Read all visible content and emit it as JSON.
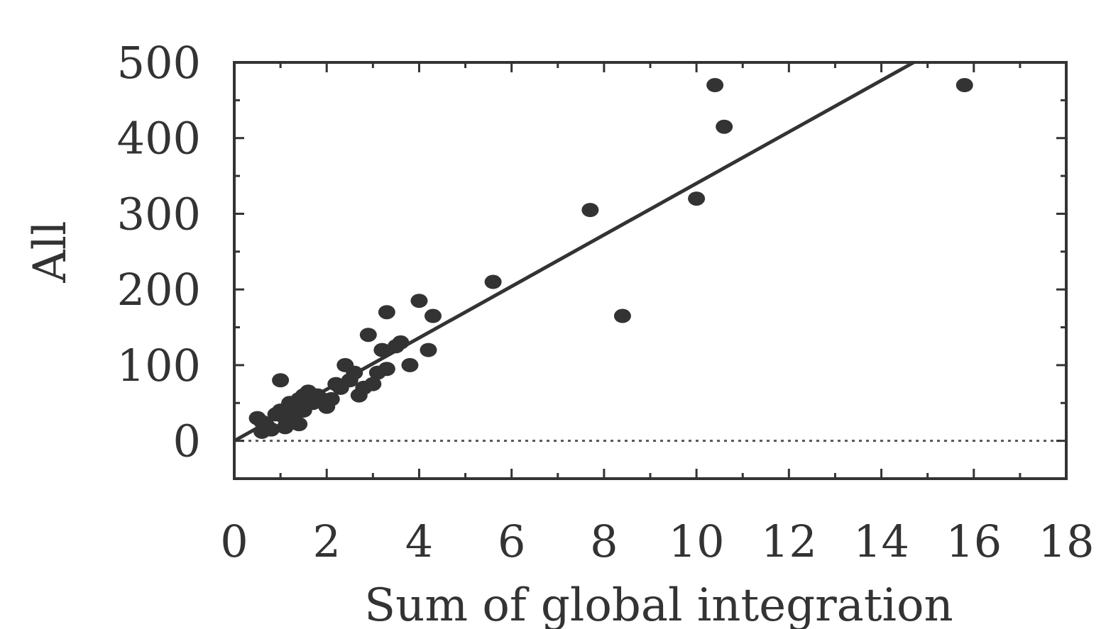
{
  "chart_data": {
    "type": "scatter",
    "xlabel": "Sum of global integration",
    "ylabel": "All",
    "xlim": [
      0,
      18
    ],
    "ylim": [
      -50,
      500
    ],
    "x_ticks": [
      "0",
      "2",
      "4",
      "6",
      "8",
      "10",
      "12",
      "14",
      "16",
      "18"
    ],
    "y_ticks": [
      "500",
      "400",
      "300",
      "200",
      "100",
      "0"
    ],
    "x_tick_values": [
      0,
      2,
      4,
      6,
      8,
      10,
      12,
      14,
      16,
      18
    ],
    "y_tick_values": [
      500,
      400,
      300,
      200,
      100,
      0
    ],
    "grid": false,
    "zero_line": "dotted",
    "series": [
      {
        "points": [
          [
            0.5,
            30
          ],
          [
            0.6,
            25
          ],
          [
            0.7,
            20
          ],
          [
            0.8,
            15
          ],
          [
            0.9,
            35
          ],
          [
            0.6,
            12
          ],
          [
            1.0,
            80
          ],
          [
            1.0,
            40
          ],
          [
            1.1,
            30
          ],
          [
            1.1,
            18
          ],
          [
            1.2,
            50
          ],
          [
            1.2,
            25
          ],
          [
            1.3,
            45
          ],
          [
            1.3,
            35
          ],
          [
            1.4,
            55
          ],
          [
            1.4,
            22
          ],
          [
            1.5,
            60
          ],
          [
            1.5,
            40
          ],
          [
            1.6,
            65
          ],
          [
            1.7,
            50
          ],
          [
            1.8,
            60
          ],
          [
            1.9,
            55
          ],
          [
            2.0,
            45
          ],
          [
            2.1,
            55
          ],
          [
            2.2,
            75
          ],
          [
            2.3,
            70
          ],
          [
            2.4,
            100
          ],
          [
            2.5,
            80
          ],
          [
            2.6,
            90
          ],
          [
            2.7,
            60
          ],
          [
            2.8,
            70
          ],
          [
            2.9,
            140
          ],
          [
            3.0,
            75
          ],
          [
            3.1,
            90
          ],
          [
            3.2,
            120
          ],
          [
            3.3,
            170
          ],
          [
            3.3,
            95
          ],
          [
            3.5,
            125
          ],
          [
            3.6,
            130
          ],
          [
            3.8,
            100
          ],
          [
            4.0,
            185
          ],
          [
            4.2,
            120
          ],
          [
            4.3,
            165
          ],
          [
            5.6,
            210
          ],
          [
            7.7,
            305
          ],
          [
            8.4,
            165
          ],
          [
            10.0,
            320
          ],
          [
            10.4,
            470
          ],
          [
            10.6,
            415
          ],
          [
            15.8,
            470
          ]
        ]
      }
    ],
    "trendline": {
      "x": [
        0,
        14.7
      ],
      "y": [
        0,
        500
      ]
    }
  }
}
